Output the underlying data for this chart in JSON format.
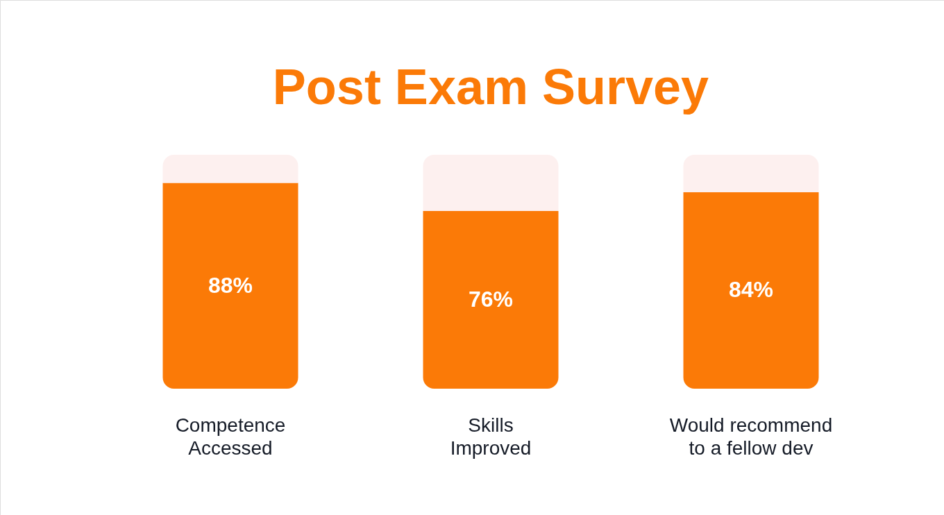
{
  "chart_data": {
    "type": "bar",
    "title": "Post Exam Survey",
    "categories": [
      "Competence\nAccessed",
      "Skills\nImproved",
      "Would recommend\nto a fellow dev"
    ],
    "stacked": true,
    "series": [
      {
        "color": "#fb7a07",
        "values": [
          88,
          76,
          84
        ],
        "value_labels": [
          "88%",
          "76%",
          "84%"
        ]
      },
      {
        "color": "#fdf0ef",
        "values": [
          12,
          24,
          16
        ]
      }
    ]
  }
}
